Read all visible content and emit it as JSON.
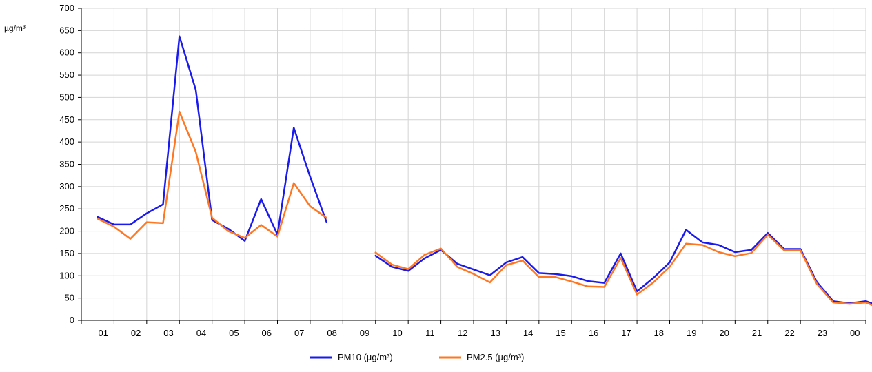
{
  "chart_data": {
    "type": "line",
    "ylabel": "µg/m³",
    "ylim": [
      0,
      700
    ],
    "yticks": [
      0,
      50,
      100,
      150,
      200,
      250,
      300,
      350,
      400,
      450,
      500,
      550,
      600,
      650,
      700
    ],
    "x_tick_labels": [
      "01",
      "02",
      "03",
      "04",
      "05",
      "06",
      "07",
      "08",
      "09",
      "10",
      "11",
      "12",
      "13",
      "14",
      "15",
      "16",
      "17",
      "18",
      "19",
      "20",
      "21",
      "22",
      "23",
      "00"
    ],
    "x_start": 0.5,
    "x_step": 0.5,
    "grid": true,
    "legend_position": "bottom-center",
    "series": [
      {
        "name": "PM10 (µg/m³)",
        "color": "#1a1aee",
        "values": [
          232,
          215,
          215,
          240,
          260,
          637,
          517,
          225,
          205,
          178,
          272,
          192,
          432,
          322,
          221,
          null,
          null,
          145,
          120,
          111,
          139,
          158,
          127,
          114,
          101,
          130,
          142,
          106,
          104,
          99,
          88,
          84,
          150,
          65,
          95,
          130,
          203,
          175,
          169,
          153,
          158,
          196,
          160,
          160,
          86,
          43,
          38,
          43,
          30
        ]
      },
      {
        "name": "PM2.5 (µg/m³)",
        "color": "#ff7722",
        "values": [
          228,
          210,
          183,
          220,
          218,
          468,
          378,
          230,
          200,
          185,
          214,
          188,
          308,
          256,
          230,
          null,
          null,
          152,
          125,
          115,
          147,
          161,
          120,
          104,
          85,
          124,
          134,
          97,
          97,
          87,
          76,
          75,
          140,
          58,
          85,
          120,
          172,
          169,
          153,
          144,
          151,
          192,
          157,
          157,
          82,
          40,
          37,
          40,
          25
        ]
      }
    ]
  }
}
